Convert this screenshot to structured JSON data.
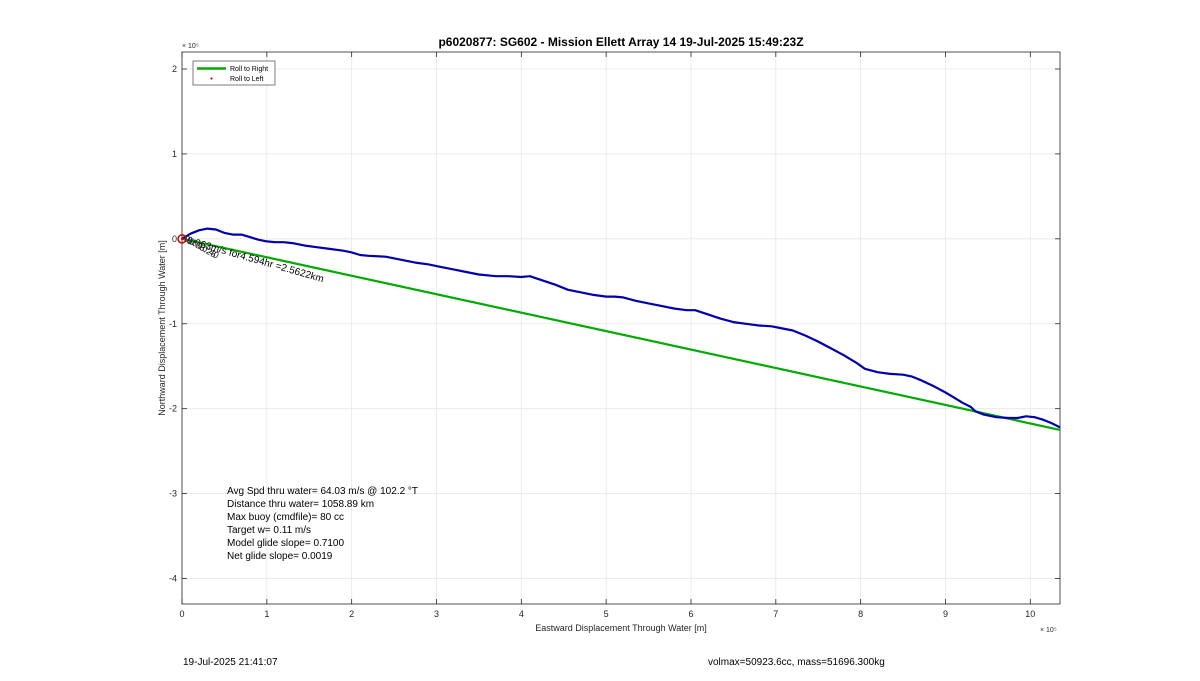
{
  "chart_data": {
    "type": "line",
    "title": "p6020877: SG602 - Mission Ellett Array 14 19-Jul-2025 15:49:23Z",
    "xlabel": "Eastward Displacement Through Water [m]",
    "ylabel": "Northward Displacement Through Water [m]",
    "x_exponent": "× 10⁵",
    "y_exponent": "× 10⁵",
    "xlim": [
      0,
      10.35
    ],
    "ylim": [
      -4.3,
      2.2
    ],
    "xticks": [
      0,
      1,
      2,
      3,
      4,
      5,
      6,
      7,
      8,
      9,
      10
    ],
    "yticks": [
      2,
      1,
      0,
      -1,
      -2,
      -3,
      -4
    ],
    "grid": true,
    "legend": {
      "placement": "top-left",
      "entries": [
        {
          "label": "Roll to Right",
          "color": "#00aa00",
          "style": "line"
        },
        {
          "label": "Roll to Left",
          "color": "#cc0000",
          "style": "dot"
        }
      ]
    },
    "series": [
      {
        "color": "#00aa00",
        "x": [
          0,
          10.35
        ],
        "y": [
          0,
          -2.25
        ]
      },
      {
        "color": "#0000b0",
        "x": [
          0,
          0.1,
          0.2,
          0.3,
          0.4,
          0.5,
          0.6,
          0.7,
          0.8,
          0.9,
          1.0,
          1.1,
          1.2,
          1.3,
          1.45,
          1.6,
          1.75,
          1.9,
          2.0,
          2.1,
          2.2,
          2.4,
          2.6,
          2.75,
          2.9,
          3.05,
          3.2,
          3.35,
          3.5,
          3.7,
          3.85,
          4.0,
          4.1,
          4.25,
          4.4,
          4.55,
          4.7,
          4.85,
          5.0,
          5.1,
          5.2,
          5.35,
          5.5,
          5.65,
          5.8,
          5.95,
          6.05,
          6.2,
          6.35,
          6.5,
          6.65,
          6.8,
          6.95,
          7.05,
          7.2,
          7.35,
          7.5,
          7.65,
          7.8,
          7.95,
          8.05,
          8.2,
          8.35,
          8.5,
          8.6,
          8.7,
          8.85,
          9.0,
          9.1,
          9.2,
          9.3,
          9.35,
          9.45,
          9.6,
          9.75,
          9.85,
          9.95,
          10.05,
          10.15,
          10.25,
          10.35
        ],
        "y": [
          0,
          0.06,
          0.1,
          0.12,
          0.11,
          0.07,
          0.05,
          0.05,
          0.02,
          -0.01,
          -0.03,
          -0.04,
          -0.04,
          -0.05,
          -0.08,
          -0.1,
          -0.12,
          -0.14,
          -0.16,
          -0.19,
          -0.2,
          -0.21,
          -0.25,
          -0.28,
          -0.3,
          -0.33,
          -0.36,
          -0.39,
          -0.42,
          -0.44,
          -0.44,
          -0.45,
          -0.44,
          -0.49,
          -0.54,
          -0.6,
          -0.63,
          -0.66,
          -0.68,
          -0.68,
          -0.69,
          -0.73,
          -0.76,
          -0.79,
          -0.82,
          -0.84,
          -0.84,
          -0.89,
          -0.94,
          -0.98,
          -1.0,
          -1.02,
          -1.03,
          -1.05,
          -1.08,
          -1.14,
          -1.21,
          -1.29,
          -1.37,
          -1.46,
          -1.53,
          -1.57,
          -1.59,
          -1.6,
          -1.62,
          -1.66,
          -1.73,
          -1.81,
          -1.87,
          -1.93,
          -1.98,
          -2.03,
          -2.07,
          -2.1,
          -2.11,
          -2.11,
          -2.09,
          -2.1,
          -2.13,
          -2.17,
          -2.22
        ]
      }
    ],
    "annotations": [
      {
        "text": "0.063m/s for4.594hr =2.5622km",
        "x": 0.05,
        "y": -0.05,
        "rotation": "-16 deg"
      },
      {
        "text": "00:58:26",
        "x": 0.02,
        "y": -0.02,
        "rotation": "-30 deg"
      },
      {
        "text": "01:10:40",
        "x": 0.05,
        "y": -0.03,
        "rotation": "-30 deg"
      }
    ],
    "start_marker": {
      "x": 0,
      "y": 0,
      "color": "#cc0000"
    }
  },
  "stats": [
    "Avg Spd thru water= 64.03 m/s @ 102.2 °T",
    "Distance thru water= 1058.89 km",
    "Max buoy (cmdfile)= 80 cc",
    "Target w= 0.11 m/s",
    "Model glide slope= 0.7100",
    "Net glide slope= 0.0019"
  ],
  "footer": {
    "left": "19-Jul-2025 21:41:07",
    "right": "volmax=50923.6cc, mass=51696.300kg"
  }
}
